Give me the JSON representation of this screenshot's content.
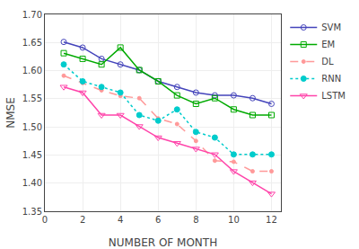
{
  "chart_data": {
    "type": "line",
    "x": [
      1,
      2,
      3,
      4,
      5,
      6,
      7,
      8,
      9,
      10,
      11,
      12
    ],
    "series": [
      {
        "name": "SVM",
        "color": "#4444BB",
        "marker": "circle-open",
        "line_style": "solid",
        "values": [
          1.651,
          1.641,
          1.621,
          1.611,
          1.601,
          1.581,
          1.571,
          1.561,
          1.556,
          1.556,
          1.551,
          1.541
        ]
      },
      {
        "name": "EM",
        "color": "#00AA00",
        "marker": "square-open",
        "line_style": "solid",
        "values": [
          1.631,
          1.621,
          1.611,
          1.641,
          1.601,
          1.581,
          1.556,
          1.541,
          1.551,
          1.531,
          1.521,
          1.521
        ]
      },
      {
        "name": "DL",
        "color": "#FF9999",
        "marker": "dot",
        "line_style": "dashed",
        "values": [
          1.591,
          1.578,
          1.565,
          1.555,
          1.551,
          1.515,
          1.505,
          1.475,
          1.44,
          1.438,
          1.421,
          1.421
        ]
      },
      {
        "name": "RNN",
        "color": "#00CCCC",
        "marker": "circle",
        "line_style": "dotted",
        "values": [
          1.611,
          1.581,
          1.571,
          1.561,
          1.521,
          1.511,
          1.531,
          1.491,
          1.481,
          1.451,
          1.451,
          1.451
        ]
      },
      {
        "name": "LSTM",
        "color": "#FF44AA",
        "marker": "triangle-down-open",
        "line_style": "solid",
        "values": [
          1.571,
          1.561,
          1.521,
          1.521,
          1.501,
          1.481,
          1.471,
          1.461,
          1.451,
          1.421,
          1.401,
          1.381
        ]
      }
    ],
    "xlabel": "NUMBER OF MONTH",
    "ylabel": "NMSE",
    "xlim": [
      0,
      12.5
    ],
    "xticks": [
      0,
      2,
      4,
      6,
      8,
      10,
      12
    ],
    "ylim": [
      1.35,
      1.7
    ],
    "yticks": [
      1.35,
      {
        "value": 1.4,
        "label": "1.40"
      },
      1.45,
      {
        "value": 1.5,
        "label": "1.50"
      },
      1.55,
      {
        "value": 1.6,
        "label": "1.60"
      },
      1.65,
      {
        "value": 1.7,
        "label": "1.70"
      }
    ],
    "grid": true,
    "legend": "upper right"
  }
}
